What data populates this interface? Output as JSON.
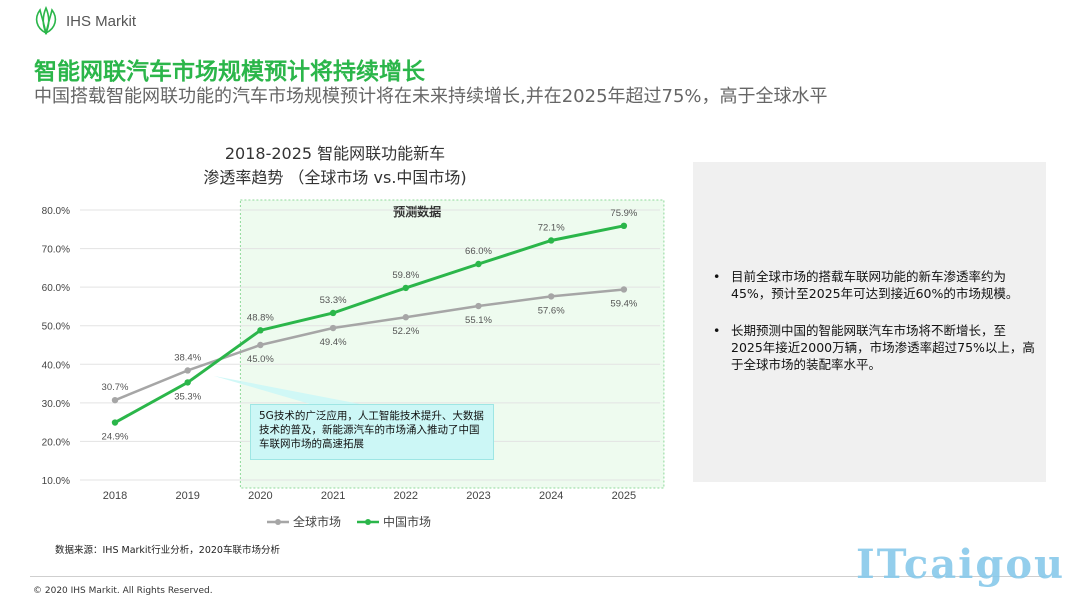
{
  "brand": {
    "name": "IHS Markit",
    "icon": "ihs-markit-leaf-logo"
  },
  "title": "智能网联汽车市场规模预计将持续增长",
  "subtitle": "中国搭载智能网联功能的汽车市场规模预计将在未来持续增长,并在2025年超过75%，高于全球水平",
  "chart_data": {
    "type": "line",
    "title_lines": [
      "2018-2025 智能网联功能新车",
      "渗透率趋势 （全球市场 vs.中国市场)"
    ],
    "categories": [
      "2018",
      "2019",
      "2020",
      "2021",
      "2022",
      "2023",
      "2024",
      "2025"
    ],
    "ylim": [
      10,
      80
    ],
    "y_ticks": [
      "10.0%",
      "20.0%",
      "30.0%",
      "40.0%",
      "50.0%",
      "60.0%",
      "70.0%",
      "80.0%"
    ],
    "forecast_label": "预测数据",
    "forecast_range": [
      "2020",
      "2025"
    ],
    "grid": "horizontal",
    "legend_position": "bottom",
    "series": [
      {
        "name": "全球市场",
        "color": "#a6a6a6",
        "values": [
          30.7,
          38.4,
          45.0,
          49.4,
          52.2,
          55.1,
          57.6,
          59.4
        ],
        "labels": [
          "30.7%",
          "38.4%",
          "45.0%",
          "49.4%",
          "52.2%",
          "55.1%",
          "57.6%",
          "59.4%"
        ]
      },
      {
        "name": "中国市场",
        "color": "#2bb64a",
        "values": [
          24.9,
          35.3,
          48.8,
          53.3,
          59.8,
          66.0,
          72.1,
          75.9
        ],
        "labels": [
          "24.9%",
          "35.3%",
          "48.8%",
          "53.3%",
          "59.8%",
          "66.0%",
          "72.1%",
          "75.9%"
        ]
      }
    ],
    "annotation": "5G技术的广泛应用，人工智能技术提升、大数据技术的普及，新能源汽车的市场涌入推动了中国车联网市场的高速拓展"
  },
  "bullets": [
    "目前全球市场的搭载车联网功能的新车渗透率约为45%，预计至2025年可达到接近60%的市场规模。",
    "长期预测中国的智能网联汽车市场将不断增长，至2025年接近2000万辆，市场渗透率超过75%以上，高于全球市场的装配率水平。"
  ],
  "source": "数据来源：IHS Markit行业分析，2020车联市场分析",
  "copyright": "© 2020 IHS Markit. All Rights Reserved.",
  "watermark": "ITcaigou"
}
